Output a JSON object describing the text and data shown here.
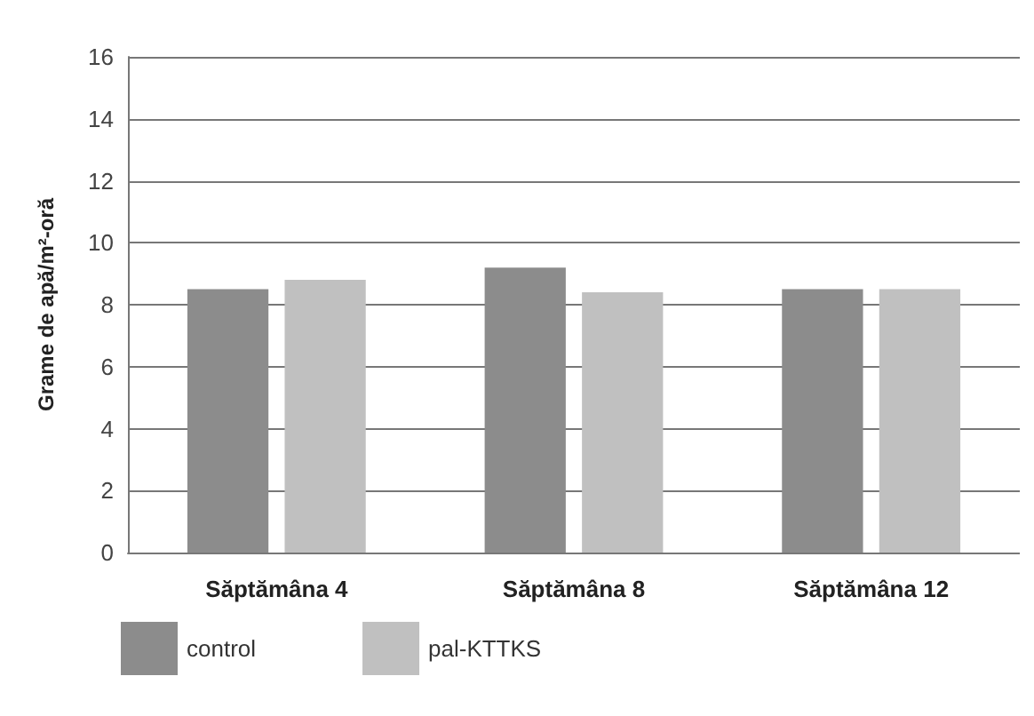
{
  "chart_data": {
    "type": "bar",
    "ylabel": "Grame de apă/m²-oră",
    "categories": [
      "Săptămâna 4",
      "Săptămâna 8",
      "Săptămâna 12"
    ],
    "series": [
      {
        "name": "control",
        "color": "#8c8c8c",
        "values": [
          8.5,
          9.2,
          8.5
        ]
      },
      {
        "name": "pal-KTTKS",
        "color": "#c0c0c0",
        "values": [
          8.8,
          8.4,
          8.5
        ]
      }
    ],
    "ylim": [
      0,
      16
    ],
    "yticks": [
      0,
      2,
      4,
      6,
      8,
      10,
      12,
      14,
      16
    ],
    "grid": "y",
    "legend": "bottom left"
  }
}
